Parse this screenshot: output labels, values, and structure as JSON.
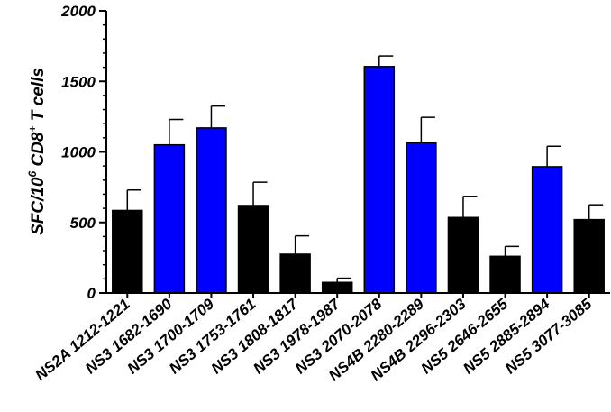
{
  "chart_data": {
    "type": "bar",
    "title": "",
    "xlabel": "",
    "ylabel": {
      "prefix": "SFC/10",
      "exp1": "6",
      "middle": " CD8",
      "exp2": "+",
      "suffix": " T cells"
    },
    "ylim": [
      0,
      2000
    ],
    "yticks": [
      "0",
      "500",
      "1000",
      "1500",
      "2000"
    ],
    "ytick_values": [
      0,
      500,
      1000,
      1500,
      2000
    ],
    "categories": [
      "NS2A 1212-1221",
      "NS3 1682-1690",
      "NS3 1700-1709",
      "NS3 1753-1761",
      "NS3 1808-1817",
      "NS3 1978-1987",
      "NS3 2070-2078",
      "NS4B 2280-2289",
      "NS4B 2296-2303",
      "NS5 2646-2655",
      "NS5 2885-2894",
      "NS5 3077-3085"
    ],
    "values": [
      585,
      1050,
      1170,
      620,
      275,
      75,
      1605,
      1065,
      535,
      260,
      895,
      520
    ],
    "errors": [
      145,
      180,
      155,
      165,
      130,
      30,
      75,
      180,
      150,
      70,
      145,
      105
    ],
    "bar_colors": [
      "#000000",
      "#0000ff",
      "#0000ff",
      "#000000",
      "#000000",
      "#000000",
      "#0000ff",
      "#0000ff",
      "#000000",
      "#000000",
      "#0000ff",
      "#000000"
    ]
  }
}
